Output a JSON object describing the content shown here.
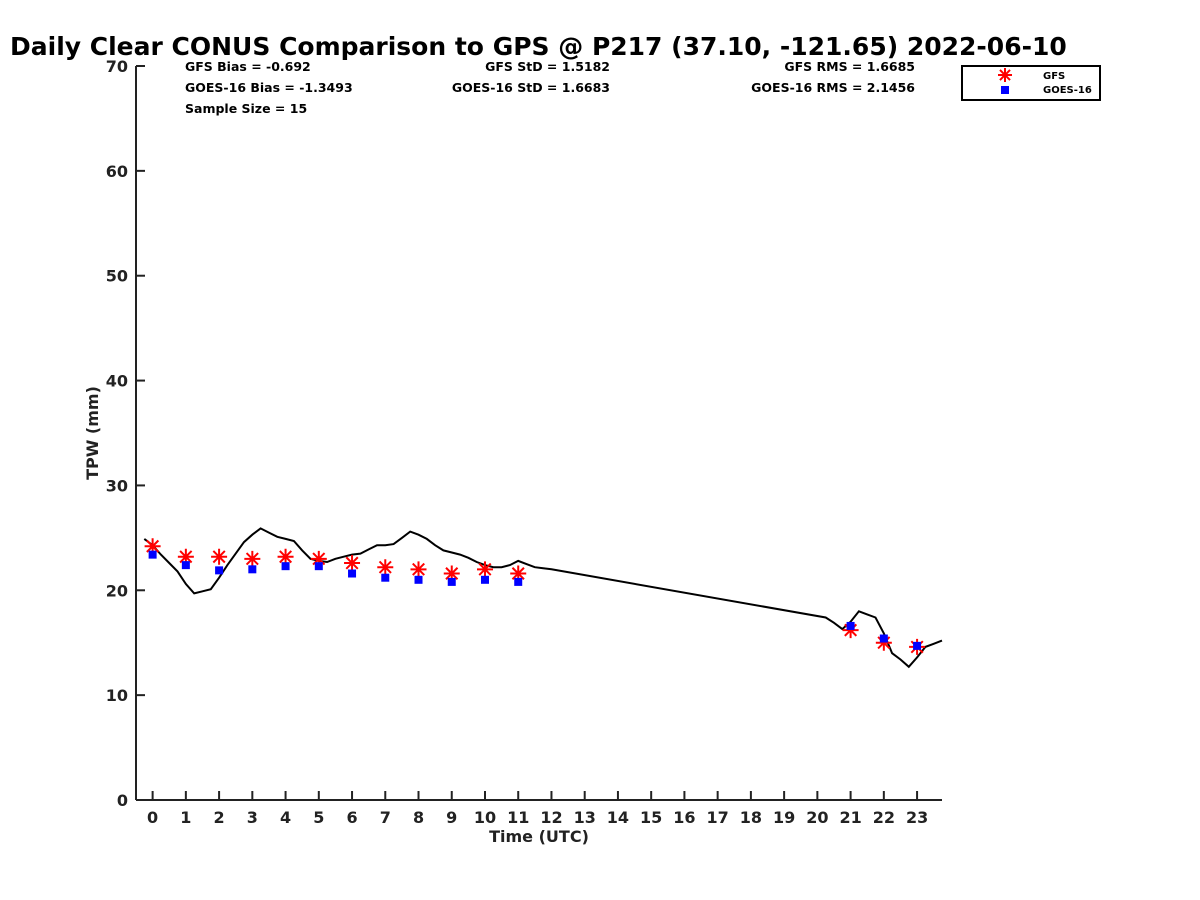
{
  "chart_data": {
    "type": "scatter",
    "title": "Daily Clear CONUS Comparison to GPS @ P217 (37.10, -121.65) 2022-06-10",
    "xlabel": "Time (UTC)",
    "ylabel": "TPW (mm)",
    "xlim": [
      -0.5,
      23.75
    ],
    "ylim": [
      0,
      70
    ],
    "x_ticks": [
      "0",
      "1",
      "2",
      "3",
      "4",
      "5",
      "6",
      "7",
      "8",
      "9",
      "10",
      "11",
      "12",
      "13",
      "14",
      "15",
      "16",
      "17",
      "18",
      "19",
      "20",
      "21",
      "22",
      "23"
    ],
    "y_ticks": [
      "0",
      "10",
      "20",
      "30",
      "40",
      "50",
      "60",
      "70"
    ],
    "legend_position": "top-right",
    "stats": {
      "gfs_bias": "GFS Bias = -0.692",
      "goes_bias": "GOES-16 Bias = -1.3493",
      "sample_size": "Sample Size = 15",
      "gfs_std": "GFS StD = 1.5182",
      "goes_std": "GOES-16 StD = 1.6683",
      "gfs_rms": "GFS RMS = 1.6685",
      "goes_rms": "GOES-16 RMS = 2.1456"
    },
    "series": [
      {
        "name": "GFS",
        "marker": "asterisk",
        "color": "#ff0000",
        "x": [
          0,
          1,
          2,
          3,
          4,
          5,
          6,
          7,
          8,
          9,
          10,
          11,
          21,
          22,
          23
        ],
        "y": [
          24.2,
          23.2,
          23.2,
          23.0,
          23.2,
          23.0,
          22.6,
          22.2,
          22.0,
          21.6,
          22.0,
          21.6,
          16.2,
          15.0,
          14.6
        ]
      },
      {
        "name": "GOES-16",
        "marker": "square",
        "color": "#0000ff",
        "x": [
          0,
          1,
          2,
          3,
          4,
          5,
          6,
          7,
          8,
          9,
          10,
          11,
          21,
          22,
          23
        ],
        "y": [
          23.4,
          22.4,
          21.9,
          22.0,
          22.3,
          22.3,
          21.6,
          21.2,
          21.0,
          20.8,
          21.0,
          20.8,
          16.6,
          15.4,
          14.7
        ]
      },
      {
        "marker": "line",
        "color": "#000000",
        "x": [
          -0.25,
          0,
          0.25,
          0.5,
          0.75,
          1.0,
          1.25,
          1.5,
          1.75,
          2.0,
          2.25,
          2.5,
          2.75,
          3.0,
          3.25,
          3.5,
          3.75,
          4.0,
          4.25,
          4.5,
          4.75,
          5.0,
          5.25,
          5.5,
          5.75,
          6.0,
          6.25,
          6.5,
          6.75,
          7.0,
          7.25,
          7.5,
          7.75,
          8.0,
          8.25,
          8.5,
          8.75,
          9.0,
          9.25,
          9.5,
          9.75,
          10.0,
          10.25,
          10.5,
          10.75,
          11.0,
          11.25,
          11.5,
          11.75,
          12.0,
          20.25,
          20.5,
          20.75,
          21.0,
          21.25,
          21.5,
          21.75,
          22.0,
          22.25,
          22.5,
          22.75,
          23.0,
          23.25,
          23.5,
          23.75
        ],
        "y": [
          24.9,
          24.3,
          23.4,
          22.6,
          21.8,
          20.6,
          19.7,
          19.9,
          20.1,
          21.2,
          22.4,
          23.5,
          24.6,
          25.3,
          25.9,
          25.5,
          25.1,
          24.9,
          24.7,
          23.8,
          23.0,
          22.8,
          22.7,
          23.0,
          23.2,
          23.4,
          23.5,
          23.9,
          24.3,
          24.3,
          24.4,
          25.0,
          25.6,
          25.3,
          24.9,
          24.3,
          23.8,
          23.6,
          23.4,
          23.1,
          22.7,
          22.4,
          22.2,
          22.2,
          22.4,
          22.8,
          22.5,
          22.2,
          22.1,
          22.0,
          17.4,
          16.9,
          16.3,
          17.0,
          18.0,
          17.7,
          17.4,
          15.9,
          14.0,
          13.4,
          12.7,
          13.6,
          14.6,
          14.9,
          15.2
        ]
      }
    ]
  }
}
